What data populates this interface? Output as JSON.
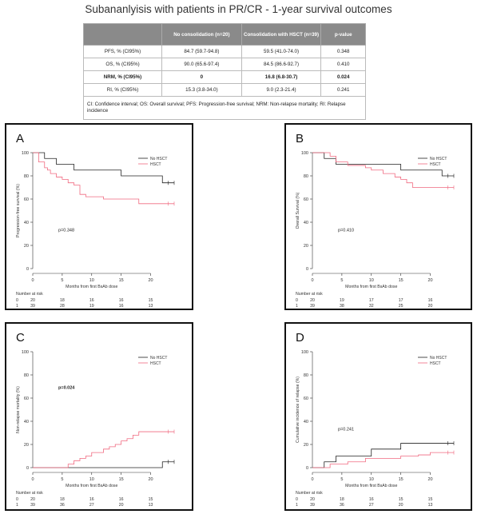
{
  "title": "Subananlyisis with patients in PR/CR - 1-year survival outcomes",
  "table": {
    "headers": [
      "",
      "No consolidation (n=20)",
      "Consolidation with HSCT (n=39)",
      "p-value"
    ],
    "rows": [
      {
        "label": "PFS, % (CI95%)",
        "no": "84.7 (59.7-94.8)",
        "hsct": "59.5 (41.0-74.0)",
        "p": "0.348",
        "bold": false
      },
      {
        "label": "OS, % (CI95%)",
        "no": "90.0 (65.6-97.4)",
        "hsct": "84.5 (86.6-92.7)",
        "p": "0.410",
        "bold": false
      },
      {
        "label": "NRM, % (CI95%)",
        "no": "0",
        "hsct": "16.8 (6.8-30.7)",
        "p": "0.024",
        "bold": true
      },
      {
        "label": "RI, % (CI95%)",
        "no": "15.3 (3.8-34.0)",
        "hsct": "9.0 (2.3-21.4)",
        "p": "0.241",
        "bold": false
      }
    ],
    "footnote": "CI: Confidence interval; OS: Overall survival; PFS: Progression-free survival; NRM: Non-relapse mortality; RI: Relapse incidence"
  },
  "colors": {
    "no_hsct": "#222222",
    "hsct": "#f06a80"
  },
  "chart_data": [
    {
      "panel": "A",
      "type": "line",
      "step": true,
      "ylabel": "Progression-free survival (%)",
      "xlabel": "Months from first BsAb dose",
      "ylim": [
        0,
        100
      ],
      "xlim": [
        0,
        24
      ],
      "yticks": [
        0,
        20,
        40,
        60,
        80,
        100
      ],
      "xticks": [
        0,
        5,
        10,
        15,
        20
      ],
      "pvalue": "p=0.348",
      "pbold": false,
      "legend": [
        "No HSCT",
        "HSCT"
      ],
      "legend_position": "top-right",
      "series": [
        {
          "name": "No HSCT",
          "x": [
            0,
            2,
            4,
            7,
            15,
            22,
            24
          ],
          "y": [
            100,
            95,
            90,
            85,
            80,
            74,
            74
          ]
        },
        {
          "name": "HSCT",
          "x": [
            0,
            1,
            2,
            2.5,
            3,
            4,
            5,
            6,
            7,
            8,
            9,
            12,
            18,
            24
          ],
          "y": [
            100,
            92,
            87,
            85,
            82,
            79,
            77,
            74,
            72,
            64,
            62,
            60,
            56,
            56
          ]
        }
      ],
      "risk_label": "Number at risk",
      "risk_times": [
        0,
        5,
        10,
        15,
        20
      ],
      "risk_rows": [
        {
          "group": "0",
          "values": [
            "20",
            "18",
            "16",
            "16",
            "15"
          ]
        },
        {
          "group": "1",
          "values": [
            "39",
            "28",
            "19",
            "16",
            "13"
          ]
        }
      ]
    },
    {
      "panel": "B",
      "type": "line",
      "step": true,
      "ylabel": "Overall Survival (%)",
      "xlabel": "Months from first BsAb dose",
      "ylim": [
        0,
        100
      ],
      "xlim": [
        0,
        24
      ],
      "yticks": [
        0,
        20,
        40,
        60,
        80,
        100
      ],
      "xticks": [
        0,
        5,
        10,
        15,
        20
      ],
      "pvalue": "p=0.410",
      "pbold": false,
      "legend": [
        "No HSCT",
        "HSCT"
      ],
      "legend_position": "top-right",
      "series": [
        {
          "name": "No HSCT",
          "x": [
            0,
            2,
            4,
            7,
            15,
            22,
            24
          ],
          "y": [
            100,
            95,
            90,
            90,
            85,
            80,
            80
          ]
        },
        {
          "name": "HSCT",
          "x": [
            0,
            3,
            4,
            6,
            9,
            10,
            12,
            14,
            15,
            16,
            17,
            24
          ],
          "y": [
            100,
            97,
            92,
            89,
            87,
            85,
            82,
            79,
            77,
            74,
            70,
            70
          ]
        }
      ],
      "risk_label": "Number at risk",
      "risk_times": [
        0,
        5,
        10,
        15,
        20
      ],
      "risk_rows": [
        {
          "group": "0",
          "values": [
            "20",
            "19",
            "17",
            "17",
            "16"
          ]
        },
        {
          "group": "1",
          "values": [
            "39",
            "38",
            "32",
            "25",
            "20"
          ]
        }
      ]
    },
    {
      "panel": "C",
      "type": "line",
      "step": true,
      "ylabel": "Non-relapse mortality (%)",
      "xlabel": "Months from first BsAb dose",
      "ylim": [
        0,
        100
      ],
      "xlim": [
        0,
        24
      ],
      "yticks": [
        0,
        20,
        40,
        60,
        80,
        100
      ],
      "xticks": [
        0,
        5,
        10,
        15,
        20
      ],
      "pvalue": "p=0.024",
      "pbold": true,
      "legend": [
        "No HSCT",
        "HSCT"
      ],
      "legend_position": "top-right",
      "series": [
        {
          "name": "No HSCT",
          "x": [
            0,
            22,
            24
          ],
          "y": [
            0,
            5,
            5
          ]
        },
        {
          "name": "HSCT",
          "x": [
            0,
            6,
            7,
            8,
            9,
            10,
            12,
            13,
            14,
            15,
            16,
            17,
            18,
            24
          ],
          "y": [
            0,
            3,
            6,
            8,
            10,
            13,
            16,
            18,
            20,
            23,
            25,
            28,
            31,
            31
          ]
        }
      ],
      "risk_label": "Number at risk",
      "risk_times": [
        0,
        5,
        10,
        15,
        20
      ],
      "risk_rows": [
        {
          "group": "0",
          "values": [
            "20",
            "18",
            "16",
            "16",
            "15"
          ]
        },
        {
          "group": "1",
          "values": [
            "39",
            "36",
            "27",
            "20",
            "13"
          ]
        }
      ]
    },
    {
      "panel": "D",
      "type": "line",
      "step": true,
      "ylabel": "Cumulative incidence of relapse (%)",
      "xlabel": "Months from first BsAb dose",
      "ylim": [
        0,
        100
      ],
      "xlim": [
        0,
        24
      ],
      "yticks": [
        0,
        20,
        40,
        60,
        80,
        100
      ],
      "xticks": [
        0,
        5,
        10,
        15,
        20
      ],
      "pvalue": "p=0.241",
      "pbold": false,
      "legend": [
        "No HSCT",
        "HSCT"
      ],
      "legend_position": "top-right",
      "series": [
        {
          "name": "No HSCT",
          "x": [
            0,
            2,
            4,
            7,
            10,
            15,
            24
          ],
          "y": [
            0,
            5,
            10,
            10,
            16,
            21,
            21
          ]
        },
        {
          "name": "HSCT",
          "x": [
            0,
            3,
            6,
            9,
            15,
            18,
            20,
            24
          ],
          "y": [
            0,
            3,
            5,
            8,
            10,
            11,
            13,
            13
          ]
        }
      ],
      "risk_label": "Number at risk",
      "risk_times": [
        0,
        5,
        10,
        15,
        20
      ],
      "risk_rows": [
        {
          "group": "0",
          "values": [
            "20",
            "18",
            "16",
            "15",
            "15"
          ]
        },
        {
          "group": "1",
          "values": [
            "39",
            "36",
            "27",
            "20",
            "13"
          ]
        }
      ]
    }
  ]
}
